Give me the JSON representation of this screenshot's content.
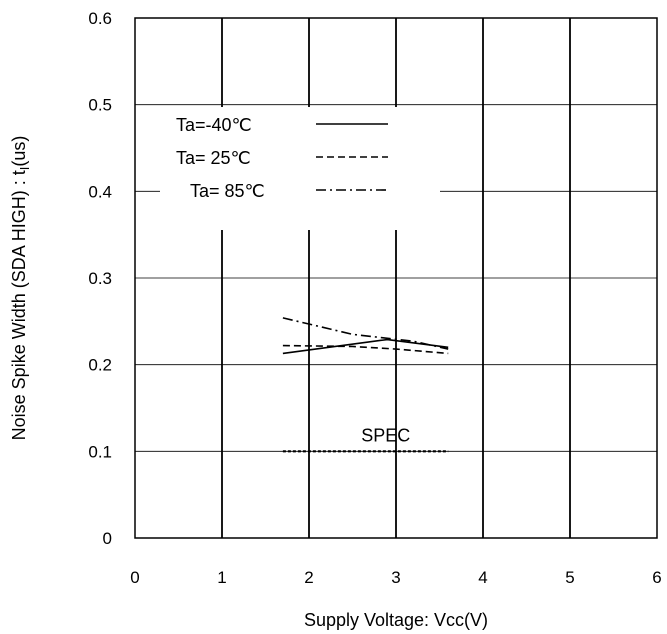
{
  "chart_data": {
    "type": "line",
    "title": "",
    "xlabel": "Supply Voltage: Vcc(V)",
    "ylabel_main": "Noise Spike Width (SDA HIGH) : t",
    "ylabel_sub": "I",
    "ylabel_unit": "(us)",
    "xlim": [
      0,
      6
    ],
    "ylim": [
      0,
      0.6
    ],
    "x_ticks": [
      0,
      1,
      2,
      3,
      4,
      5,
      6
    ],
    "x_tick_labels": [
      "0",
      "1",
      "2",
      "3",
      "4",
      "5",
      "6"
    ],
    "y_ticks": [
      0,
      0.1,
      0.2,
      0.3,
      0.4,
      0.5,
      0.6
    ],
    "y_tick_labels": [
      "0",
      "0.1",
      "0.2",
      "0.3",
      "0.4",
      "0.5",
      "0.6"
    ],
    "grid": true,
    "legend_position": "top-left",
    "series": [
      {
        "name": "Ta=-40℃",
        "style": "solid",
        "x": [
          1.7,
          2.9,
          3.6
        ],
        "y": [
          0.213,
          0.229,
          0.22
        ]
      },
      {
        "name": "Ta= 25℃",
        "style": "dashed",
        "x": [
          1.7,
          2.5,
          3.0,
          3.6
        ],
        "y": [
          0.222,
          0.221,
          0.218,
          0.213
        ]
      },
      {
        "name": "Ta= 85℃",
        "style": "dashdot",
        "x": [
          1.7,
          2.5,
          3.2,
          3.6
        ],
        "y": [
          0.254,
          0.235,
          0.227,
          0.218
        ]
      }
    ],
    "spec": {
      "label": "SPEC",
      "x": [
        1.7,
        3.6
      ],
      "y": 0.1
    }
  }
}
